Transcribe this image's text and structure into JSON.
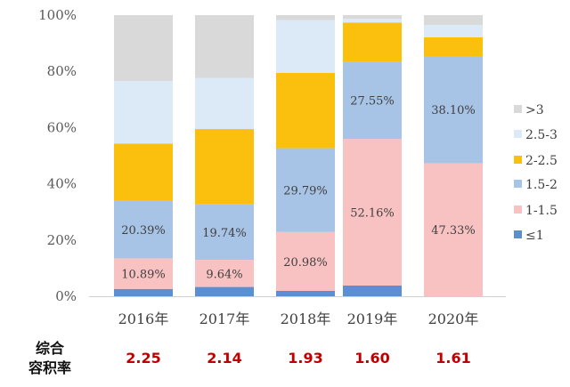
{
  "chart_data": {
    "type": "bar",
    "stacked": true,
    "categories": [
      "2016年",
      "2017年",
      "2018年",
      "2019年",
      "2020年"
    ],
    "ylim": [
      0,
      100
    ],
    "yticks": [
      "0%",
      "20%",
      "40%",
      "60%",
      "80%",
      "100%"
    ],
    "series": [
      {
        "name": "≤1",
        "color": "#5b8fd1",
        "values": [
          2.6,
          3.3,
          1.9,
          3.8,
          0.0
        ]
      },
      {
        "name": "1-1.5",
        "color": "#f8c2c2",
        "values": [
          10.89,
          9.64,
          20.98,
          52.16,
          47.33
        ]
      },
      {
        "name": "1.5-2",
        "color": "#a7c3e5",
        "values": [
          20.39,
          19.74,
          29.79,
          27.55,
          38.1
        ]
      },
      {
        "name": "2-2.5",
        "color": "#fbc00d",
        "values": [
          20.4,
          26.8,
          26.8,
          13.8,
          6.7
        ]
      },
      {
        "name": "2.5-3",
        "color": "#dce9f7",
        "values": [
          22.3,
          18.2,
          18.8,
          1.4,
          4.4
        ]
      },
      {
        "name": ">3",
        "color": "#d9d9d9",
        "values": [
          23.42,
          22.32,
          1.73,
          1.29,
          3.47
        ]
      }
    ],
    "data_labels": [
      {
        "series": 1,
        "category": 0,
        "text": "10.89%"
      },
      {
        "series": 2,
        "category": 0,
        "text": "20.39%"
      },
      {
        "series": 1,
        "category": 1,
        "text": "9.64%"
      },
      {
        "series": 2,
        "category": 1,
        "text": "19.74%"
      },
      {
        "series": 1,
        "category": 2,
        "text": "20.98%"
      },
      {
        "series": 2,
        "category": 2,
        "text": "29.79%"
      },
      {
        "series": 1,
        "category": 3,
        "text": "52.16%"
      },
      {
        "series": 2,
        "category": 3,
        "text": "27.55%"
      },
      {
        "series": 1,
        "category": 4,
        "text": "47.33%"
      },
      {
        "series": 2,
        "category": 4,
        "text": "38.10%"
      }
    ],
    "legend_order": [
      ">3",
      "2.5-3",
      "2-2.5",
      "1.5-2",
      "1-1.5",
      "≤1"
    ],
    "legend_position": "right"
  },
  "footer": {
    "title_line1": "综合",
    "title_line2": "容积率",
    "value_color": "#c00000",
    "values": [
      "2.25",
      "2.14",
      "1.93",
      "1.60",
      "1.61"
    ]
  }
}
